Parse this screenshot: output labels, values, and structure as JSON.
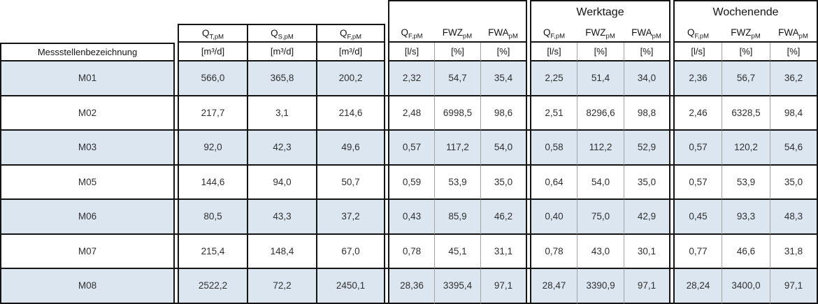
{
  "colors": {
    "row_shaded": "#dce6f1",
    "border_dark": "#141414",
    "border_light": "#a3a3a3",
    "text": "#303030"
  },
  "table": {
    "corner_label": "Messstellenbezeichnung",
    "groups": [
      {
        "title": "",
        "cols": [
          {
            "base": "Q",
            "sub": "T,pM"
          },
          {
            "base": "Q",
            "sub": "S,pM"
          },
          {
            "base": "Q",
            "sub": "F,pM"
          }
        ],
        "units": [
          "[m³/d]",
          "[m³/d]",
          "[m³/d]"
        ]
      },
      {
        "title": "",
        "cols": [
          {
            "base": "Q",
            "sub": "F,pM"
          },
          {
            "base": "FWZ",
            "sub": "pM"
          },
          {
            "base": "FWA",
            "sub": "pM"
          }
        ],
        "units": [
          "[l/s]",
          "[%]",
          "[%]"
        ]
      },
      {
        "title": "Werktage",
        "cols": [
          {
            "base": "Q",
            "sub": "F,pM"
          },
          {
            "base": "FWZ",
            "sub": "pM"
          },
          {
            "base": "FWA",
            "sub": "pM"
          }
        ],
        "units": [
          "[l/s]",
          "[%]",
          "[%]"
        ]
      },
      {
        "title": "Wochenende",
        "cols": [
          {
            "base": "Q",
            "sub": "F,pM"
          },
          {
            "base": "FWZ",
            "sub": "pM"
          },
          {
            "base": "FWA",
            "sub": "pM"
          }
        ],
        "units": [
          "[l/s]",
          "[%]",
          "[%]"
        ]
      }
    ],
    "rows": [
      {
        "label": "M01",
        "values": [
          "566,0",
          "365,8",
          "200,2",
          "2,32",
          "54,7",
          "35,4",
          "2,25",
          "51,4",
          "34,0",
          "2,36",
          "56,7",
          "36,2"
        ]
      },
      {
        "label": "M02",
        "values": [
          "217,7",
          "3,1",
          "214,6",
          "2,48",
          "6998,5",
          "98,6",
          "2,51",
          "8296,6",
          "98,8",
          "2,46",
          "6328,5",
          "98,4"
        ]
      },
      {
        "label": "M03",
        "values": [
          "92,0",
          "42,3",
          "49,6",
          "0,57",
          "117,2",
          "54,0",
          "0,58",
          "112,2",
          "52,9",
          "0,57",
          "120,2",
          "54,6"
        ]
      },
      {
        "label": "M05",
        "values": [
          "144,6",
          "94,0",
          "50,7",
          "0,59",
          "53,9",
          "35,0",
          "0,64",
          "54,0",
          "35,0",
          "0,57",
          "53,9",
          "35,0"
        ]
      },
      {
        "label": "M06",
        "values": [
          "80,5",
          "43,3",
          "37,2",
          "0,43",
          "85,9",
          "46,2",
          "0,40",
          "75,0",
          "42,9",
          "0,45",
          "93,3",
          "48,3"
        ]
      },
      {
        "label": "M07",
        "values": [
          "215,4",
          "148,4",
          "67,0",
          "0,78",
          "45,1",
          "31,1",
          "0,78",
          "43,0",
          "30,1",
          "0,77",
          "46,6",
          "31,8"
        ]
      },
      {
        "label": "M08",
        "values": [
          "2522,2",
          "72,2",
          "2450,1",
          "28,36",
          "3395,4",
          "97,1",
          "28,47",
          "3390,9",
          "97,1",
          "28,24",
          "3400,0",
          "97,1"
        ]
      }
    ]
  }
}
